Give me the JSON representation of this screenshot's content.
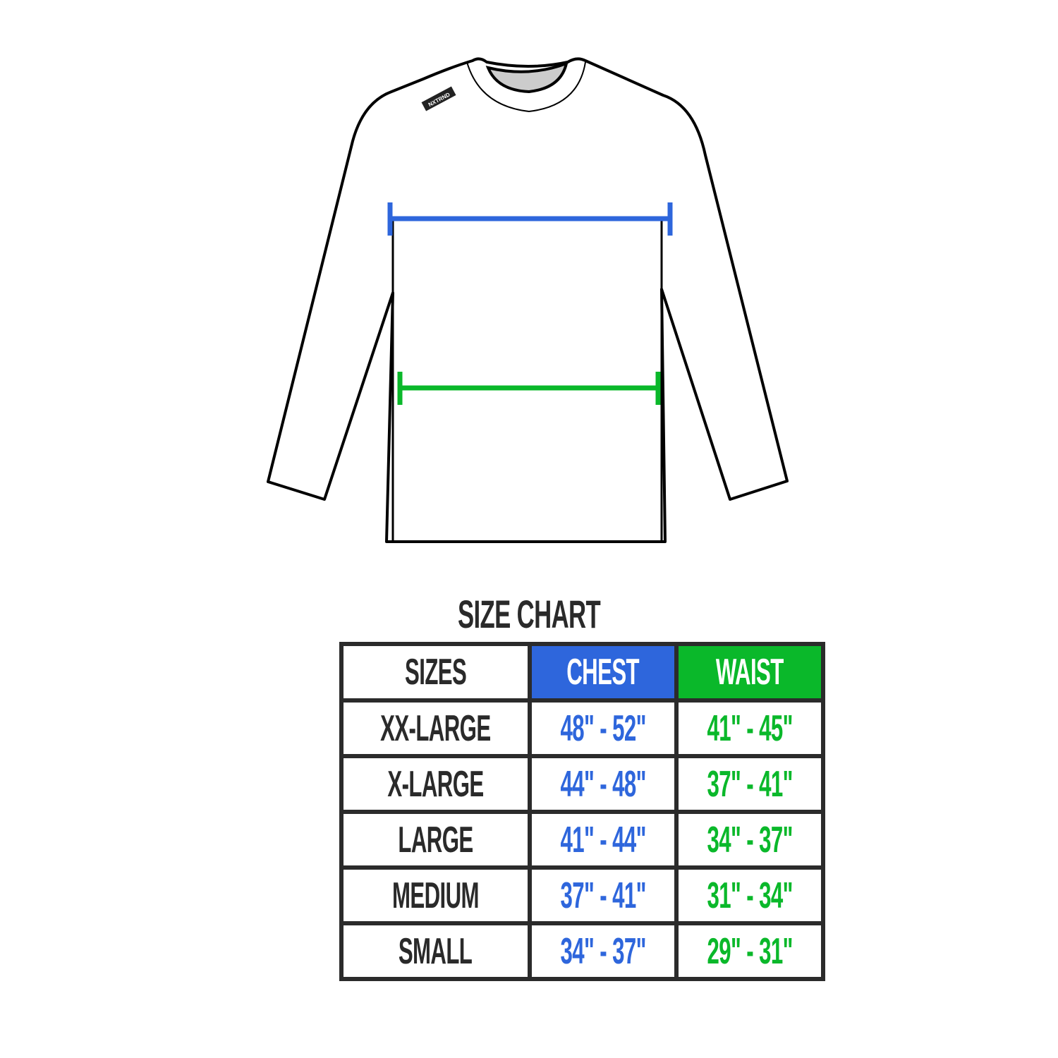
{
  "brand_tag": "NXTRND",
  "title": "SIZE CHART",
  "colors": {
    "chest": "#2e66dc",
    "waist": "#0ab82a",
    "border": "#2b2b2b"
  },
  "headers": [
    "SIZES",
    "CHEST",
    "WAIST"
  ],
  "rows": [
    {
      "size": "XX-LARGE",
      "chest": "48\" - 52\"",
      "waist": "41\" - 45\""
    },
    {
      "size": "X-LARGE",
      "chest": "44\" - 48\"",
      "waist": "37\" - 41\""
    },
    {
      "size": "LARGE",
      "chest": "41\" - 44\"",
      "waist": "34\" - 37\""
    },
    {
      "size": "MEDIUM",
      "chest": "37\" - 41\"",
      "waist": "31\" - 34\""
    },
    {
      "size": "SMALL",
      "chest": "34\" - 37\"",
      "waist": "29\" - 31\""
    }
  ]
}
